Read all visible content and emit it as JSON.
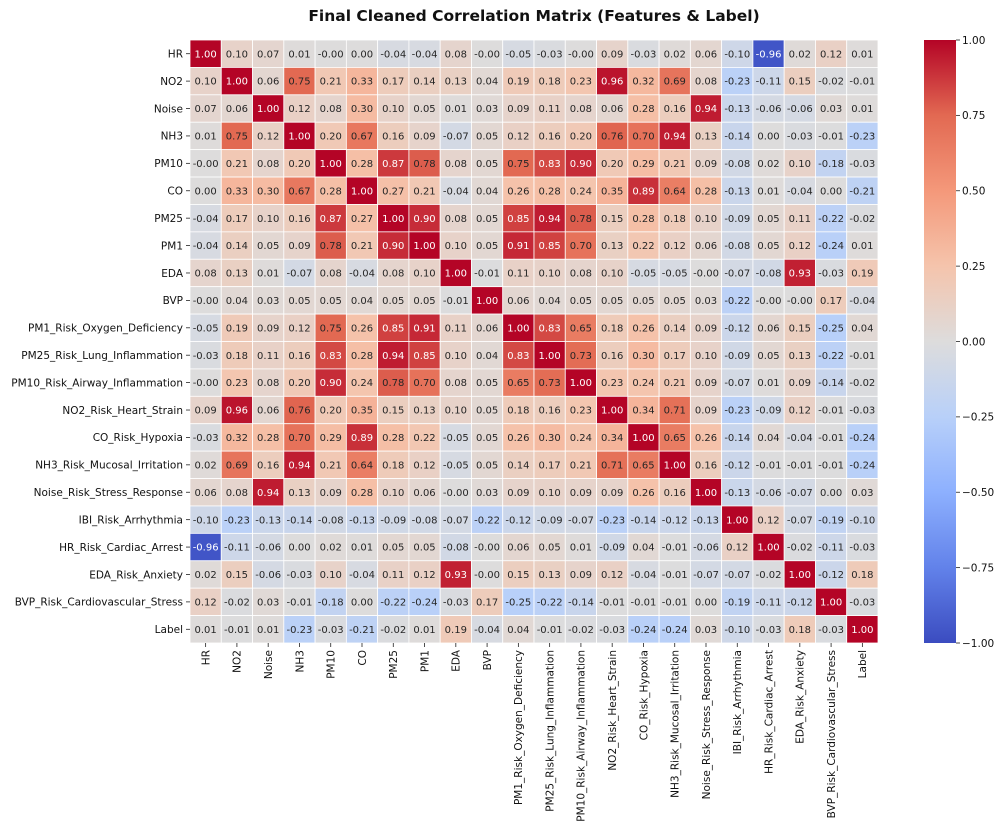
{
  "chart_data": {
    "type": "heatmap",
    "title": "Final Cleaned Correlation Matrix (Features & Label)",
    "xlabel": "",
    "ylabel": "",
    "colormap": "coolwarm",
    "vmin": -1.0,
    "vmax": 1.0,
    "value_format": "0.00",
    "colorbar_ticks": [
      "1.00",
      "0.75",
      "0.50",
      "0.25",
      "0.00",
      "−0.25",
      "−0.50",
      "−0.75",
      "−1.00"
    ],
    "labels": [
      "HR",
      "NO2",
      "Noise",
      "NH3",
      "PM10",
      "CO",
      "PM25",
      "PM1",
      "EDA",
      "BVP",
      "PM1_Risk_Oxygen_Deficiency",
      "PM25_Risk_Lung_Inflammation",
      "PM10_Risk_Airway_Inflammation",
      "NO2_Risk_Heart_Strain",
      "CO_Risk_Hypoxia",
      "NH3_Risk_Mucosal_Irritation",
      "Noise_Risk_Stress_Response",
      "IBI_Risk_Arrhythmia",
      "HR_Risk_Cardiac_Arrest",
      "EDA_Risk_Anxiety",
      "BVP_Risk_Cardiovascular_Stress",
      "Label"
    ],
    "matrix": [
      [
        1.0,
        0.1,
        0.07,
        0.01,
        -0.0,
        0.0,
        -0.04,
        -0.04,
        0.08,
        -0.0,
        -0.05,
        -0.03,
        -0.0,
        0.09,
        -0.03,
        0.02,
        0.06,
        -0.1,
        -0.96,
        0.02,
        0.12,
        0.01
      ],
      [
        0.1,
        1.0,
        0.06,
        0.75,
        0.21,
        0.33,
        0.17,
        0.14,
        0.13,
        0.04,
        0.19,
        0.18,
        0.23,
        0.96,
        0.32,
        0.69,
        0.08,
        -0.23,
        -0.11,
        0.15,
        -0.02,
        -0.01
      ],
      [
        0.07,
        0.06,
        1.0,
        0.12,
        0.08,
        0.3,
        0.1,
        0.05,
        0.01,
        0.03,
        0.09,
        0.11,
        0.08,
        0.06,
        0.28,
        0.16,
        0.94,
        -0.13,
        -0.06,
        -0.06,
        0.03,
        0.01
      ],
      [
        0.01,
        0.75,
        0.12,
        1.0,
        0.2,
        0.67,
        0.16,
        0.09,
        -0.07,
        0.05,
        0.12,
        0.16,
        0.2,
        0.76,
        0.7,
        0.94,
        0.13,
        -0.14,
        0.0,
        -0.03,
        -0.01,
        -0.23
      ],
      [
        -0.0,
        0.21,
        0.08,
        0.2,
        1.0,
        0.28,
        0.87,
        0.78,
        0.08,
        0.05,
        0.75,
        0.83,
        0.9,
        0.2,
        0.29,
        0.21,
        0.09,
        -0.08,
        0.02,
        0.1,
        -0.18,
        -0.03
      ],
      [
        0.0,
        0.33,
        0.3,
        0.67,
        0.28,
        1.0,
        0.27,
        0.21,
        -0.04,
        0.04,
        0.26,
        0.28,
        0.24,
        0.35,
        0.89,
        0.64,
        0.28,
        -0.13,
        0.01,
        -0.04,
        0.0,
        -0.21
      ],
      [
        -0.04,
        0.17,
        0.1,
        0.16,
        0.87,
        0.27,
        1.0,
        0.9,
        0.08,
        0.05,
        0.85,
        0.94,
        0.78,
        0.15,
        0.28,
        0.18,
        0.1,
        -0.09,
        0.05,
        0.11,
        -0.22,
        -0.02
      ],
      [
        -0.04,
        0.14,
        0.05,
        0.09,
        0.78,
        0.21,
        0.9,
        1.0,
        0.1,
        0.05,
        0.91,
        0.85,
        0.7,
        0.13,
        0.22,
        0.12,
        0.06,
        -0.08,
        0.05,
        0.12,
        -0.24,
        0.01
      ],
      [
        0.08,
        0.13,
        0.01,
        -0.07,
        0.08,
        -0.04,
        0.08,
        0.1,
        1.0,
        -0.01,
        0.11,
        0.1,
        0.08,
        0.1,
        -0.05,
        -0.05,
        -0.0,
        -0.07,
        -0.08,
        0.93,
        -0.03,
        0.19
      ],
      [
        -0.0,
        0.04,
        0.03,
        0.05,
        0.05,
        0.04,
        0.05,
        0.05,
        -0.01,
        1.0,
        0.06,
        0.04,
        0.05,
        0.05,
        0.05,
        0.05,
        0.03,
        -0.22,
        -0.0,
        -0.0,
        0.17,
        -0.04
      ],
      [
        -0.05,
        0.19,
        0.09,
        0.12,
        0.75,
        0.26,
        0.85,
        0.91,
        0.11,
        0.06,
        1.0,
        0.83,
        0.65,
        0.18,
        0.26,
        0.14,
        0.09,
        -0.12,
        0.06,
        0.15,
        -0.25,
        0.04
      ],
      [
        -0.03,
        0.18,
        0.11,
        0.16,
        0.83,
        0.28,
        0.94,
        0.85,
        0.1,
        0.04,
        0.83,
        1.0,
        0.73,
        0.16,
        0.3,
        0.17,
        0.1,
        -0.09,
        0.05,
        0.13,
        -0.22,
        -0.01
      ],
      [
        -0.0,
        0.23,
        0.08,
        0.2,
        0.9,
        0.24,
        0.78,
        0.7,
        0.08,
        0.05,
        0.65,
        0.73,
        1.0,
        0.23,
        0.24,
        0.21,
        0.09,
        -0.07,
        0.01,
        0.09,
        -0.14,
        -0.02
      ],
      [
        0.09,
        0.96,
        0.06,
        0.76,
        0.2,
        0.35,
        0.15,
        0.13,
        0.1,
        0.05,
        0.18,
        0.16,
        0.23,
        1.0,
        0.34,
        0.71,
        0.09,
        -0.23,
        -0.09,
        0.12,
        -0.01,
        -0.03
      ],
      [
        -0.03,
        0.32,
        0.28,
        0.7,
        0.29,
        0.89,
        0.28,
        0.22,
        -0.05,
        0.05,
        0.26,
        0.3,
        0.24,
        0.34,
        1.0,
        0.65,
        0.26,
        -0.14,
        0.04,
        -0.04,
        -0.01,
        -0.24
      ],
      [
        0.02,
        0.69,
        0.16,
        0.94,
        0.21,
        0.64,
        0.18,
        0.12,
        -0.05,
        0.05,
        0.14,
        0.17,
        0.21,
        0.71,
        0.65,
        1.0,
        0.16,
        -0.12,
        -0.01,
        -0.01,
        -0.01,
        -0.24
      ],
      [
        0.06,
        0.08,
        0.94,
        0.13,
        0.09,
        0.28,
        0.1,
        0.06,
        -0.0,
        0.03,
        0.09,
        0.1,
        0.09,
        0.09,
        0.26,
        0.16,
        1.0,
        -0.13,
        -0.06,
        -0.07,
        0.0,
        0.03
      ],
      [
        -0.1,
        -0.23,
        -0.13,
        -0.14,
        -0.08,
        -0.13,
        -0.09,
        -0.08,
        -0.07,
        -0.22,
        -0.12,
        -0.09,
        -0.07,
        -0.23,
        -0.14,
        -0.12,
        -0.13,
        1.0,
        0.12,
        -0.07,
        -0.19,
        -0.1
      ],
      [
        -0.96,
        -0.11,
        -0.06,
        0.0,
        0.02,
        0.01,
        0.05,
        0.05,
        -0.08,
        -0.0,
        0.06,
        0.05,
        0.01,
        -0.09,
        0.04,
        -0.01,
        -0.06,
        0.12,
        1.0,
        -0.02,
        -0.11,
        -0.03
      ],
      [
        0.02,
        0.15,
        -0.06,
        -0.03,
        0.1,
        -0.04,
        0.11,
        0.12,
        0.93,
        -0.0,
        0.15,
        0.13,
        0.09,
        0.12,
        -0.04,
        -0.01,
        -0.07,
        -0.07,
        -0.02,
        1.0,
        -0.12,
        0.18
      ],
      [
        0.12,
        -0.02,
        0.03,
        -0.01,
        -0.18,
        0.0,
        -0.22,
        -0.24,
        -0.03,
        0.17,
        -0.25,
        -0.22,
        -0.14,
        -0.01,
        -0.01,
        -0.01,
        0.0,
        -0.19,
        -0.11,
        -0.12,
        1.0,
        -0.03
      ],
      [
        0.01,
        -0.01,
        0.01,
        -0.23,
        -0.03,
        -0.21,
        -0.02,
        0.01,
        0.19,
        -0.04,
        0.04,
        -0.01,
        -0.02,
        -0.03,
        -0.24,
        -0.24,
        0.03,
        -0.1,
        -0.03,
        0.18,
        -0.03,
        1.0
      ]
    ]
  }
}
